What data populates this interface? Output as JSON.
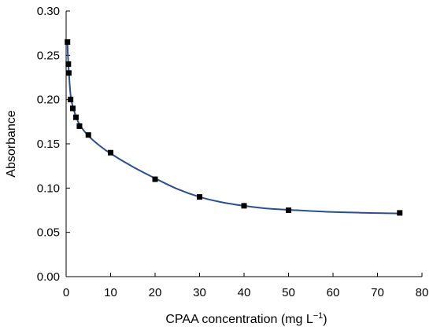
{
  "chart_data": {
    "type": "scatter",
    "title": "",
    "xlabel": "CPAA concentration (mg L",
    "xlabel_sup": "−1",
    "xlabel_suffix": ")",
    "ylabel": "Absorbance",
    "xlim": [
      0,
      80
    ],
    "ylim": [
      0,
      0.3
    ],
    "xticks": [
      "0",
      "10",
      "20",
      "30",
      "40",
      "50",
      "60",
      "70",
      "80"
    ],
    "yticks": [
      "0.00",
      "0.05",
      "0.10",
      "0.15",
      "0.20",
      "0.25",
      "0.30"
    ],
    "grid": false,
    "legend": "none",
    "marker_color": "#000000",
    "curve_color": "#2b4f8c",
    "series": [
      {
        "values": [
          {
            "x": 0.3,
            "y": 0.265
          },
          {
            "x": 0.5,
            "y": 0.24
          },
          {
            "x": 0.6,
            "y": 0.23
          },
          {
            "x": 1.0,
            "y": 0.2
          },
          {
            "x": 1.5,
            "y": 0.19
          },
          {
            "x": 2.2,
            "y": 0.18
          },
          {
            "x": 3.0,
            "y": 0.17
          },
          {
            "x": 5.0,
            "y": 0.16
          },
          {
            "x": 10,
            "y": 0.14
          },
          {
            "x": 20,
            "y": 0.11
          },
          {
            "x": 30,
            "y": 0.09
          },
          {
            "x": 40,
            "y": 0.08
          },
          {
            "x": 50,
            "y": 0.075
          },
          {
            "x": 75,
            "y": 0.072
          }
        ]
      }
    ],
    "fit_curve": [
      {
        "x": 0.3,
        "y": 0.265
      },
      {
        "x": 0.4,
        "y": 0.25
      },
      {
        "x": 0.6,
        "y": 0.232
      },
      {
        "x": 1.0,
        "y": 0.205
      },
      {
        "x": 1.5,
        "y": 0.192
      },
      {
        "x": 2.0,
        "y": 0.184
      },
      {
        "x": 3.0,
        "y": 0.172
      },
      {
        "x": 5.0,
        "y": 0.159
      },
      {
        "x": 7.5,
        "y": 0.148
      },
      {
        "x": 10,
        "y": 0.139
      },
      {
        "x": 15,
        "y": 0.124
      },
      {
        "x": 20,
        "y": 0.111
      },
      {
        "x": 25,
        "y": 0.099
      },
      {
        "x": 30,
        "y": 0.09
      },
      {
        "x": 35,
        "y": 0.084
      },
      {
        "x": 40,
        "y": 0.08
      },
      {
        "x": 45,
        "y": 0.077
      },
      {
        "x": 50,
        "y": 0.0755
      },
      {
        "x": 60,
        "y": 0.073
      },
      {
        "x": 70,
        "y": 0.0718
      },
      {
        "x": 75,
        "y": 0.0713
      }
    ]
  }
}
